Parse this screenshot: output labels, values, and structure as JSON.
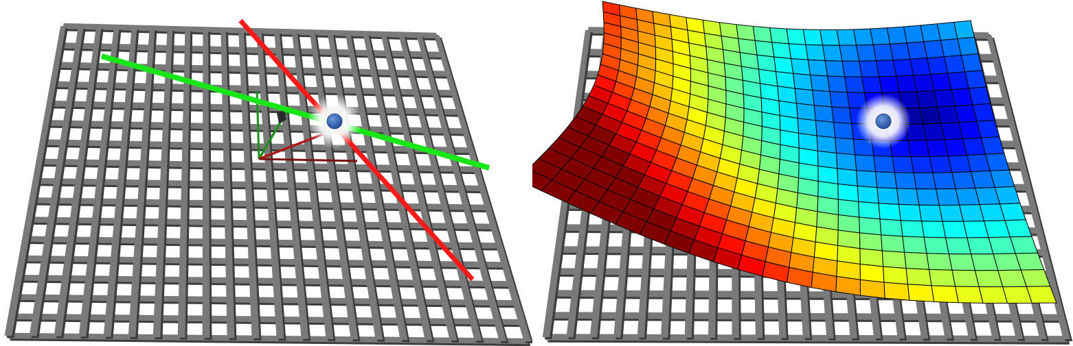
{
  "panels": [
    {
      "id": "left",
      "grid": {
        "rows": 16,
        "cols": 21,
        "bar_color": "#7a7a7a",
        "bar_edge": "#3c3c3c"
      },
      "axes": [
        {
          "id": "red-axis",
          "color": "#ff1a1a"
        },
        {
          "id": "green-axis",
          "color": "#19e619"
        }
      ],
      "frame_colors": {
        "green": "#1f8f1f",
        "red": "#b01818",
        "dark_red": "#7a1010"
      },
      "point": {
        "fill": "#2f5fb4",
        "glow": "#ffffff"
      }
    },
    {
      "id": "right",
      "grid": {
        "rows": 14,
        "cols": 22,
        "bar_color": "#7a7a7a",
        "bar_edge": "#3c3c3c"
      },
      "surface": {
        "rows": 17,
        "cols": 22,
        "colormap": [
          "#00008f",
          "#0000ff",
          "#0080ff",
          "#00ffff",
          "#80ff80",
          "#ffff00",
          "#ff8000",
          "#ff0000",
          "#800000"
        ],
        "mesh_color": "#000000"
      },
      "point": {
        "fill": "#2f5fb4",
        "glow": "#ffffff"
      }
    }
  ]
}
